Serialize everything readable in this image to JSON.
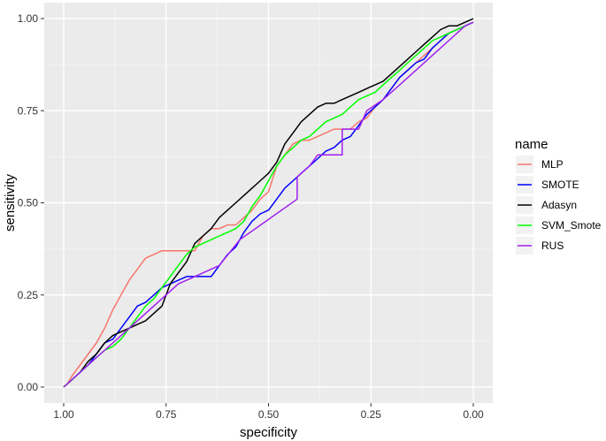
{
  "chart_data": {
    "type": "line",
    "title": "",
    "xlabel": "specificity",
    "ylabel": "sensitivity",
    "xlim": [
      1.0,
      0.0
    ],
    "ylim": [
      0.0,
      1.0
    ],
    "x_reversed": true,
    "x_ticks": [
      "1.00",
      "0.75",
      "0.50",
      "0.25",
      "0.00"
    ],
    "y_ticks": [
      "0.00",
      "0.25",
      "0.50",
      "0.75",
      "1.00"
    ],
    "grid": true,
    "legend": {
      "title": "name",
      "position": "right"
    },
    "series": [
      {
        "name": "MLP",
        "color": "#f8766d",
        "points": [
          [
            1.0,
            0.0
          ],
          [
            0.99,
            0.01
          ],
          [
            0.98,
            0.03
          ],
          [
            0.96,
            0.06
          ],
          [
            0.94,
            0.09
          ],
          [
            0.92,
            0.12
          ],
          [
            0.9,
            0.16
          ],
          [
            0.88,
            0.21
          ],
          [
            0.86,
            0.25
          ],
          [
            0.84,
            0.29
          ],
          [
            0.82,
            0.32
          ],
          [
            0.8,
            0.35
          ],
          [
            0.78,
            0.36
          ],
          [
            0.76,
            0.37
          ],
          [
            0.74,
            0.37
          ],
          [
            0.72,
            0.37
          ],
          [
            0.7,
            0.37
          ],
          [
            0.68,
            0.37
          ],
          [
            0.66,
            0.41
          ],
          [
            0.64,
            0.43
          ],
          [
            0.62,
            0.43
          ],
          [
            0.6,
            0.44
          ],
          [
            0.58,
            0.44
          ],
          [
            0.56,
            0.46
          ],
          [
            0.54,
            0.48
          ],
          [
            0.52,
            0.51
          ],
          [
            0.5,
            0.53
          ],
          [
            0.48,
            0.6
          ],
          [
            0.46,
            0.63
          ],
          [
            0.44,
            0.66
          ],
          [
            0.42,
            0.67
          ],
          [
            0.4,
            0.67
          ],
          [
            0.38,
            0.68
          ],
          [
            0.36,
            0.69
          ],
          [
            0.34,
            0.7
          ],
          [
            0.32,
            0.7
          ],
          [
            0.3,
            0.7
          ],
          [
            0.28,
            0.72
          ],
          [
            0.26,
            0.73
          ],
          [
            0.24,
            0.76
          ],
          [
            0.22,
            0.78
          ],
          [
            0.2,
            0.81
          ],
          [
            0.18,
            0.84
          ],
          [
            0.16,
            0.86
          ],
          [
            0.14,
            0.88
          ],
          [
            0.12,
            0.9
          ],
          [
            0.1,
            0.92
          ],
          [
            0.08,
            0.94
          ],
          [
            0.06,
            0.96
          ],
          [
            0.04,
            0.97
          ],
          [
            0.02,
            0.98
          ],
          [
            0.0,
            0.99
          ]
        ]
      },
      {
        "name": "SMOTE",
        "color": "#0000ff",
        "points": [
          [
            1.0,
            0.0
          ],
          [
            0.98,
            0.02
          ],
          [
            0.96,
            0.04
          ],
          [
            0.94,
            0.06
          ],
          [
            0.92,
            0.09
          ],
          [
            0.9,
            0.12
          ],
          [
            0.88,
            0.13
          ],
          [
            0.86,
            0.16
          ],
          [
            0.84,
            0.19
          ],
          [
            0.82,
            0.22
          ],
          [
            0.8,
            0.23
          ],
          [
            0.78,
            0.25
          ],
          [
            0.76,
            0.27
          ],
          [
            0.74,
            0.28
          ],
          [
            0.72,
            0.29
          ],
          [
            0.7,
            0.3
          ],
          [
            0.68,
            0.3
          ],
          [
            0.66,
            0.3
          ],
          [
            0.64,
            0.3
          ],
          [
            0.62,
            0.33
          ],
          [
            0.6,
            0.36
          ],
          [
            0.58,
            0.38
          ],
          [
            0.56,
            0.42
          ],
          [
            0.54,
            0.45
          ],
          [
            0.52,
            0.47
          ],
          [
            0.5,
            0.48
          ],
          [
            0.48,
            0.51
          ],
          [
            0.46,
            0.54
          ],
          [
            0.44,
            0.56
          ],
          [
            0.42,
            0.58
          ],
          [
            0.4,
            0.6
          ],
          [
            0.38,
            0.62
          ],
          [
            0.36,
            0.64
          ],
          [
            0.34,
            0.65
          ],
          [
            0.32,
            0.67
          ],
          [
            0.3,
            0.68
          ],
          [
            0.28,
            0.71
          ],
          [
            0.26,
            0.74
          ],
          [
            0.24,
            0.76
          ],
          [
            0.22,
            0.78
          ],
          [
            0.2,
            0.81
          ],
          [
            0.18,
            0.84
          ],
          [
            0.16,
            0.86
          ],
          [
            0.14,
            0.88
          ],
          [
            0.12,
            0.89
          ],
          [
            0.1,
            0.92
          ],
          [
            0.08,
            0.94
          ],
          [
            0.06,
            0.96
          ],
          [
            0.04,
            0.97
          ],
          [
            0.02,
            0.98
          ],
          [
            0.0,
            0.99
          ]
        ]
      },
      {
        "name": "Adasyn",
        "color": "#000000",
        "points": [
          [
            1.0,
            0.0
          ],
          [
            0.98,
            0.02
          ],
          [
            0.96,
            0.04
          ],
          [
            0.94,
            0.07
          ],
          [
            0.92,
            0.09
          ],
          [
            0.9,
            0.12
          ],
          [
            0.88,
            0.14
          ],
          [
            0.86,
            0.15
          ],
          [
            0.84,
            0.16
          ],
          [
            0.82,
            0.17
          ],
          [
            0.8,
            0.18
          ],
          [
            0.78,
            0.2
          ],
          [
            0.76,
            0.22
          ],
          [
            0.74,
            0.28
          ],
          [
            0.72,
            0.31
          ],
          [
            0.7,
            0.34
          ],
          [
            0.68,
            0.39
          ],
          [
            0.66,
            0.41
          ],
          [
            0.64,
            0.43
          ],
          [
            0.62,
            0.46
          ],
          [
            0.6,
            0.48
          ],
          [
            0.58,
            0.5
          ],
          [
            0.56,
            0.52
          ],
          [
            0.54,
            0.54
          ],
          [
            0.52,
            0.56
          ],
          [
            0.5,
            0.58
          ],
          [
            0.48,
            0.61
          ],
          [
            0.46,
            0.66
          ],
          [
            0.44,
            0.69
          ],
          [
            0.42,
            0.72
          ],
          [
            0.4,
            0.74
          ],
          [
            0.38,
            0.76
          ],
          [
            0.36,
            0.77
          ],
          [
            0.34,
            0.77
          ],
          [
            0.32,
            0.78
          ],
          [
            0.3,
            0.79
          ],
          [
            0.28,
            0.8
          ],
          [
            0.26,
            0.81
          ],
          [
            0.24,
            0.82
          ],
          [
            0.22,
            0.83
          ],
          [
            0.2,
            0.85
          ],
          [
            0.18,
            0.87
          ],
          [
            0.16,
            0.89
          ],
          [
            0.14,
            0.91
          ],
          [
            0.12,
            0.93
          ],
          [
            0.1,
            0.95
          ],
          [
            0.08,
            0.97
          ],
          [
            0.06,
            0.98
          ],
          [
            0.04,
            0.98
          ],
          [
            0.02,
            0.99
          ],
          [
            0.0,
            1.0
          ]
        ]
      },
      {
        "name": "SVM_Smote",
        "color": "#00ff00",
        "points": [
          [
            1.0,
            0.0
          ],
          [
            0.98,
            0.02
          ],
          [
            0.96,
            0.04
          ],
          [
            0.94,
            0.06
          ],
          [
            0.92,
            0.08
          ],
          [
            0.9,
            0.1
          ],
          [
            0.88,
            0.11
          ],
          [
            0.86,
            0.13
          ],
          [
            0.84,
            0.16
          ],
          [
            0.82,
            0.19
          ],
          [
            0.8,
            0.22
          ],
          [
            0.78,
            0.24
          ],
          [
            0.76,
            0.27
          ],
          [
            0.74,
            0.3
          ],
          [
            0.72,
            0.33
          ],
          [
            0.7,
            0.36
          ],
          [
            0.68,
            0.38
          ],
          [
            0.66,
            0.39
          ],
          [
            0.64,
            0.4
          ],
          [
            0.62,
            0.41
          ],
          [
            0.6,
            0.42
          ],
          [
            0.58,
            0.43
          ],
          [
            0.56,
            0.45
          ],
          [
            0.54,
            0.49
          ],
          [
            0.52,
            0.52
          ],
          [
            0.5,
            0.56
          ],
          [
            0.48,
            0.6
          ],
          [
            0.46,
            0.63
          ],
          [
            0.44,
            0.65
          ],
          [
            0.42,
            0.67
          ],
          [
            0.4,
            0.68
          ],
          [
            0.38,
            0.7
          ],
          [
            0.36,
            0.72
          ],
          [
            0.34,
            0.73
          ],
          [
            0.32,
            0.74
          ],
          [
            0.3,
            0.76
          ],
          [
            0.28,
            0.78
          ],
          [
            0.26,
            0.79
          ],
          [
            0.24,
            0.8
          ],
          [
            0.22,
            0.82
          ],
          [
            0.2,
            0.84
          ],
          [
            0.18,
            0.86
          ],
          [
            0.16,
            0.88
          ],
          [
            0.14,
            0.9
          ],
          [
            0.12,
            0.92
          ],
          [
            0.1,
            0.94
          ],
          [
            0.08,
            0.95
          ],
          [
            0.06,
            0.96
          ],
          [
            0.04,
            0.97
          ],
          [
            0.02,
            0.98
          ],
          [
            0.0,
            0.99
          ]
        ]
      },
      {
        "name": "RUS",
        "color": "#a020f0",
        "points": [
          [
            1.0,
            0.0
          ],
          [
            0.96,
            0.04
          ],
          [
            0.92,
            0.08
          ],
          [
            0.88,
            0.12
          ],
          [
            0.84,
            0.16
          ],
          [
            0.8,
            0.2
          ],
          [
            0.76,
            0.24
          ],
          [
            0.72,
            0.28
          ],
          [
            0.68,
            0.3
          ],
          [
            0.62,
            0.33
          ],
          [
            0.57,
            0.4
          ],
          [
            0.43,
            0.51
          ],
          [
            0.43,
            0.57
          ],
          [
            0.4,
            0.6
          ],
          [
            0.38,
            0.63
          ],
          [
            0.32,
            0.63
          ],
          [
            0.32,
            0.7
          ],
          [
            0.28,
            0.7
          ],
          [
            0.26,
            0.75
          ],
          [
            0.22,
            0.78
          ],
          [
            0.18,
            0.82
          ],
          [
            0.14,
            0.86
          ],
          [
            0.1,
            0.9
          ],
          [
            0.06,
            0.94
          ],
          [
            0.02,
            0.98
          ],
          [
            0.0,
            0.99
          ]
        ]
      }
    ]
  }
}
